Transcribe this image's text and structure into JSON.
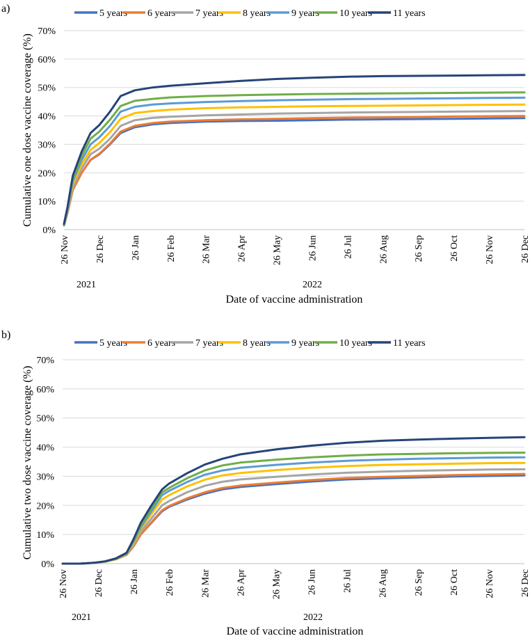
{
  "chart_data": [
    {
      "panel_label": "a)",
      "type": "line",
      "ylabel": "Cumulative one dose vaccine coverage (%)",
      "xlabel": "Date of vaccine administration",
      "ylim": [
        0,
        70
      ],
      "y_ticks": [
        "0%",
        "10%",
        "20%",
        "30%",
        "40%",
        "50%",
        "60%",
        "70%"
      ],
      "x_tick_labels": [
        "26 Nov",
        "26 Dec",
        "26 Jan",
        "26 Feb",
        "26 Mar",
        "26 Apr",
        "26 May",
        "26 Jun",
        "26 Jul",
        "26 Aug",
        "26 Sep",
        "26 Oct",
        "26 Nov",
        "26 Dec"
      ],
      "year_labels": [
        "2021",
        "2022"
      ],
      "legend": [
        "5 years",
        "6 years",
        "7 years",
        "8 years",
        "9 years",
        "10 years",
        "11 years"
      ],
      "x": [
        0,
        0.1,
        0.25,
        0.5,
        0.75,
        1.0,
        1.3,
        1.6,
        2.0,
        2.5,
        3.0,
        4.0,
        5.0,
        6.0,
        7.0,
        8.0,
        9.0,
        10.0,
        11.0,
        12.0,
        13.0
      ],
      "series": [
        {
          "name": "5 years",
          "color": "#4472C4",
          "values": [
            1.5,
            6,
            14,
            20,
            24.5,
            26.5,
            30,
            34,
            36,
            37,
            37.5,
            38,
            38.2,
            38.3,
            38.5,
            38.7,
            38.8,
            38.9,
            39.0,
            39.1,
            39.2
          ]
        },
        {
          "name": "6 years",
          "color": "#ED7D31",
          "values": [
            1.5,
            6,
            14,
            20,
            24.6,
            26.7,
            30.3,
            34.5,
            36.5,
            37.5,
            38,
            38.5,
            38.8,
            39,
            39.2,
            39.4,
            39.5,
            39.6,
            39.8,
            39.9,
            40.0
          ]
        },
        {
          "name": "7 years",
          "color": "#A5A5A5",
          "values": [
            1.5,
            6.5,
            15,
            21.5,
            26.5,
            28.5,
            32,
            36.5,
            38.5,
            39.3,
            39.7,
            40.2,
            40.5,
            40.8,
            41,
            41.2,
            41.3,
            41.4,
            41.5,
            41.6,
            41.7
          ]
        },
        {
          "name": "8 years",
          "color": "#FFC000",
          "values": [
            1.5,
            7,
            16,
            23,
            28,
            30.5,
            34.3,
            39,
            41,
            41.7,
            42.2,
            42.7,
            43,
            43.2,
            43.4,
            43.5,
            43.6,
            43.7,
            43.8,
            43.9,
            44.0
          ]
        },
        {
          "name": "9 years",
          "color": "#5B9BD5",
          "values": [
            1.5,
            7,
            17,
            24.5,
            30,
            32.5,
            36.5,
            41.5,
            43.2,
            44,
            44.4,
            44.9,
            45.2,
            45.5,
            45.7,
            45.9,
            46,
            46.1,
            46.2,
            46.3,
            46.4
          ]
        },
        {
          "name": "10 years",
          "color": "#70AD47",
          "values": [
            1.8,
            7.5,
            18,
            26,
            32,
            34.5,
            38.7,
            43.5,
            45.3,
            46,
            46.5,
            47,
            47.3,
            47.5,
            47.7,
            47.8,
            47.9,
            48,
            48.1,
            48.2,
            48.3
          ]
        },
        {
          "name": "11 years",
          "color": "#264478",
          "values": [
            2,
            8,
            19,
            27.5,
            34,
            36.8,
            41.5,
            47,
            49,
            50,
            50.6,
            51.5,
            52.3,
            53,
            53.4,
            53.8,
            54,
            54.1,
            54.2,
            54.3,
            54.4
          ]
        }
      ]
    },
    {
      "panel_label": "b)",
      "type": "line",
      "ylabel": "Cumulative two dose vaccine coverage (%)",
      "xlabel": "Date of vaccine administration",
      "ylim": [
        0,
        70
      ],
      "y_ticks": [
        "0%",
        "10%",
        "20%",
        "30%",
        "40%",
        "50%",
        "60%",
        "70%"
      ],
      "x_tick_labels": [
        "26 Nov",
        "26 Dec",
        "26 Jan",
        "26 Feb",
        "26 Mar",
        "26 Apr",
        "26 May",
        "26 Jun",
        "26 Jul",
        "26 Aug",
        "26 Sep",
        "26 Oct",
        "26 Nov",
        "26 Dec"
      ],
      "year_labels": [
        "2021",
        "2022"
      ],
      "legend": [
        "5 years",
        "6 years",
        "7 years",
        "8 years",
        "9 years",
        "10 years",
        "11 years"
      ],
      "x": [
        0,
        0.5,
        0.9,
        1.2,
        1.5,
        1.8,
        2.0,
        2.2,
        2.5,
        2.8,
        3.0,
        3.5,
        4.0,
        4.5,
        5.0,
        6.0,
        7.0,
        8.0,
        9.0,
        10.0,
        11.0,
        12.0,
        13.0
      ],
      "series": [
        {
          "name": "5 years",
          "color": "#4472C4",
          "values": [
            0,
            0,
            0.3,
            0.7,
            1.5,
            3,
            6,
            10,
            14,
            18,
            19.5,
            22,
            24,
            25.5,
            26.3,
            27.3,
            28.2,
            28.9,
            29.3,
            29.6,
            29.9,
            30.1,
            30.3
          ]
        },
        {
          "name": "6 years",
          "color": "#ED7D31",
          "values": [
            0,
            0,
            0.3,
            0.7,
            1.5,
            3,
            6,
            10,
            14.2,
            18.3,
            19.8,
            22.4,
            24.5,
            26,
            26.8,
            27.8,
            28.7,
            29.4,
            29.8,
            30.1,
            30.4,
            30.6,
            30.8
          ]
        },
        {
          "name": "7 years",
          "color": "#A5A5A5",
          "values": [
            0,
            0,
            0.3,
            0.7,
            1.6,
            3.2,
            6.5,
            11,
            15.5,
            20,
            21.5,
            24.5,
            26.7,
            28.1,
            28.9,
            29.8,
            30.6,
            31.2,
            31.6,
            31.9,
            32.1,
            32.3,
            32.4
          ]
        },
        {
          "name": "8 years",
          "color": "#FFC000",
          "values": [
            0,
            0,
            0.3,
            0.7,
            1.6,
            3.3,
            7,
            12,
            17,
            22,
            23.5,
            26.5,
            28.8,
            30.3,
            31.1,
            32.1,
            32.9,
            33.5,
            33.9,
            34.1,
            34.3,
            34.5,
            34.6
          ]
        },
        {
          "name": "9 years",
          "color": "#5B9BD5",
          "values": [
            0,
            0,
            0.3,
            0.8,
            1.7,
            3.4,
            7.5,
            12.5,
            18,
            23.5,
            25,
            28,
            30.5,
            32,
            32.9,
            33.9,
            34.7,
            35.3,
            35.7,
            36,
            36.2,
            36.4,
            36.5
          ]
        },
        {
          "name": "10 years",
          "color": "#70AD47",
          "values": [
            0,
            0,
            0.3,
            0.8,
            1.7,
            3.5,
            8,
            13,
            19,
            24.5,
            26,
            29.3,
            32,
            33.7,
            34.7,
            35.7,
            36.5,
            37.1,
            37.5,
            37.7,
            37.9,
            38,
            38.1
          ]
        },
        {
          "name": "11 years",
          "color": "#264478",
          "values": [
            0,
            0,
            0.3,
            0.8,
            1.8,
            3.7,
            8.5,
            14,
            20,
            25.5,
            27.5,
            31,
            34,
            36,
            37.5,
            39.2,
            40.5,
            41.5,
            42.2,
            42.6,
            42.9,
            43.2,
            43.4
          ]
        }
      ]
    }
  ]
}
